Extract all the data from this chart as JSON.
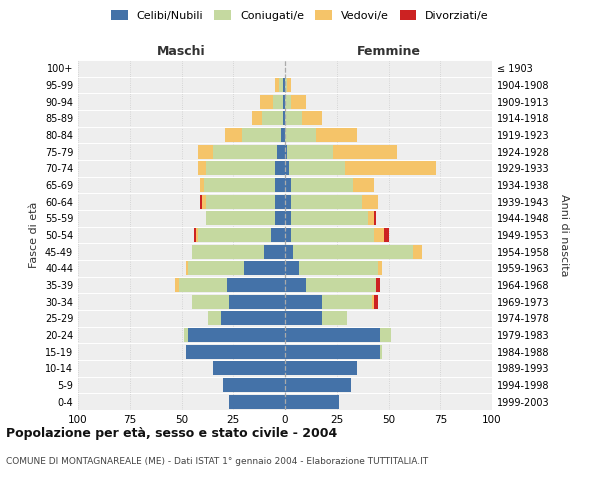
{
  "age_groups": [
    "0-4",
    "5-9",
    "10-14",
    "15-19",
    "20-24",
    "25-29",
    "30-34",
    "35-39",
    "40-44",
    "45-49",
    "50-54",
    "55-59",
    "60-64",
    "65-69",
    "70-74",
    "75-79",
    "80-84",
    "85-89",
    "90-94",
    "95-99",
    "100+"
  ],
  "birth_years": [
    "1999-2003",
    "1994-1998",
    "1989-1993",
    "1984-1988",
    "1979-1983",
    "1974-1978",
    "1969-1973",
    "1964-1968",
    "1959-1963",
    "1954-1958",
    "1949-1953",
    "1944-1948",
    "1939-1943",
    "1934-1938",
    "1929-1933",
    "1924-1928",
    "1919-1923",
    "1914-1918",
    "1909-1913",
    "1904-1908",
    "≤ 1903"
  ],
  "maschi": {
    "celibi": [
      27,
      30,
      35,
      48,
      47,
      31,
      27,
      28,
      20,
      10,
      7,
      5,
      5,
      5,
      5,
      4,
      2,
      1,
      1,
      1,
      0
    ],
    "coniugati": [
      0,
      0,
      0,
      0,
      2,
      6,
      18,
      23,
      27,
      35,
      35,
      33,
      33,
      34,
      33,
      31,
      19,
      10,
      5,
      2,
      0
    ],
    "vedovi": [
      0,
      0,
      0,
      0,
      0,
      0,
      0,
      2,
      1,
      0,
      1,
      0,
      2,
      2,
      4,
      7,
      8,
      5,
      6,
      2,
      0
    ],
    "divorziati": [
      0,
      0,
      0,
      0,
      0,
      0,
      0,
      0,
      0,
      0,
      1,
      0,
      1,
      0,
      0,
      0,
      0,
      0,
      0,
      0,
      0
    ]
  },
  "femmine": {
    "nubili": [
      26,
      32,
      35,
      46,
      46,
      18,
      18,
      10,
      7,
      4,
      3,
      3,
      3,
      3,
      2,
      1,
      0,
      0,
      0,
      0,
      0
    ],
    "coniugate": [
      0,
      0,
      0,
      1,
      5,
      12,
      24,
      34,
      38,
      58,
      40,
      37,
      34,
      30,
      27,
      22,
      15,
      8,
      3,
      1,
      0
    ],
    "vedove": [
      0,
      0,
      0,
      0,
      0,
      0,
      1,
      0,
      2,
      4,
      5,
      3,
      8,
      10,
      44,
      31,
      20,
      10,
      7,
      2,
      0
    ],
    "divorziate": [
      0,
      0,
      0,
      0,
      0,
      0,
      2,
      2,
      0,
      0,
      2,
      1,
      0,
      0,
      0,
      0,
      0,
      0,
      0,
      0,
      0
    ]
  },
  "colors": {
    "celibi_nubili": "#4472a8",
    "coniugati": "#c5d9a0",
    "vedovi": "#f5c469",
    "divorziati": "#cc2222"
  },
  "xlim": 100,
  "title": "Popolazione per età, sesso e stato civile - 2004",
  "subtitle": "COMUNE DI MONTAGNAREALE (ME) - Dati ISTAT 1° gennaio 2004 - Elaborazione TUTTITALIA.IT",
  "ylabel_left": "Fasce di età",
  "ylabel_right": "Anni di nascita",
  "xlabel_left": "Maschi",
  "xlabel_right": "Femmine",
  "legend_labels": [
    "Celibi/Nubili",
    "Coniugati/e",
    "Vedovi/e",
    "Divorziati/e"
  ],
  "background_color": "#ffffff",
  "bar_height": 0.85,
  "grid_color": "#cccccc",
  "axis_bg": "#eeeeee"
}
